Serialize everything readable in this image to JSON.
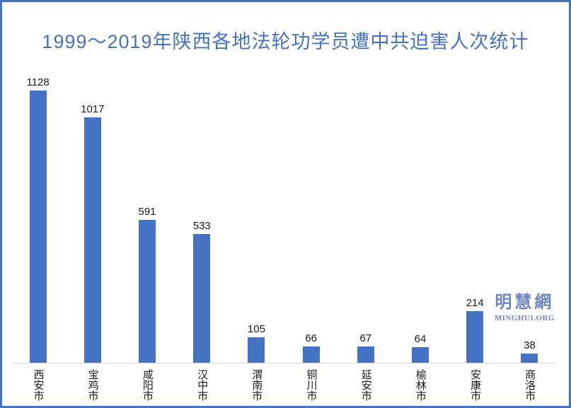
{
  "title": "1999～2019年陕西各地法轮功学员遭中共迫害人次统计",
  "watermark": {
    "cn": "明慧網",
    "en": "MINGHUI.ORG"
  },
  "colors": {
    "bar": "#4472C4",
    "frame_border": "#4472C4",
    "title_text": "#4472C4",
    "watermark_text": "#6E85C6",
    "axis_line": "#D9D9D9",
    "data_label_text": "#1A1A1A"
  },
  "chart_data": {
    "type": "bar",
    "title": "1999～2019年陕西各地法轮功学员遭中共迫害人次统计",
    "categories": [
      "西安市",
      "宝鸡市",
      "咸阳市",
      "汉中市",
      "渭南市",
      "铜川市",
      "延安市",
      "榆林市",
      "安康市",
      "商洛市"
    ],
    "values": [
      1128,
      1017,
      591,
      533,
      105,
      66,
      67,
      64,
      214,
      38
    ],
    "xlabel": "",
    "ylabel": "",
    "ylim": [
      0,
      1200
    ],
    "grid": false,
    "legend": false,
    "y_axis_visible": false,
    "data_labels": true,
    "x_tick_orientation": "vertical-upright"
  }
}
